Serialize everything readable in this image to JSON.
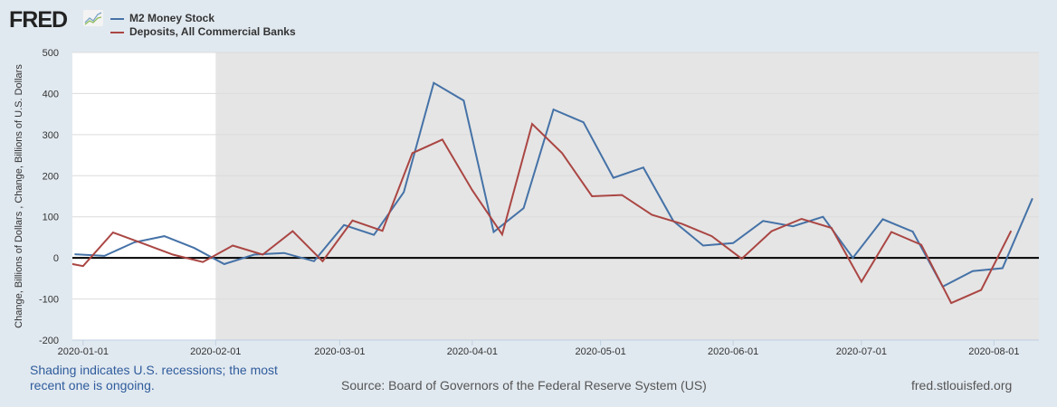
{
  "header": {
    "logo": "FRED",
    "logo_icon": "fred-chart-icon"
  },
  "chart_data": {
    "type": "line",
    "title": "",
    "xlabel": "",
    "ylabel": "Change, Billions of Dollars , Change, Billions of U.S. Dollars",
    "ylim": [
      -200,
      500
    ],
    "xlim": [
      "2019-12-29",
      "2020-08-11"
    ],
    "yticks": [
      500,
      400,
      300,
      200,
      100,
      0,
      -100,
      -200
    ],
    "xticks": [
      "2020-01-01",
      "2020-02-01",
      "2020-03-01",
      "2020-04-01",
      "2020-05-01",
      "2020-06-01",
      "2020-07-01",
      "2020-08-01"
    ],
    "grid": true,
    "legend_position": "top-left",
    "recession_shading": {
      "start": "2020-02-01",
      "end": "ongoing",
      "color": "#e5e5e5"
    },
    "series": [
      {
        "name": "M2 Money Stock",
        "color": "#4572a7",
        "x": [
          "2019-12-30",
          "2020-01-06",
          "2020-01-13",
          "2020-01-20",
          "2020-01-27",
          "2020-02-03",
          "2020-02-10",
          "2020-02-17",
          "2020-02-24",
          "2020-03-02",
          "2020-03-09",
          "2020-03-16",
          "2020-03-23",
          "2020-03-30",
          "2020-04-06",
          "2020-04-13",
          "2020-04-20",
          "2020-04-27",
          "2020-05-04",
          "2020-05-11",
          "2020-05-18",
          "2020-05-25",
          "2020-06-01",
          "2020-06-08",
          "2020-06-15",
          "2020-06-22",
          "2020-06-29",
          "2020-07-06",
          "2020-07-13",
          "2020-07-20",
          "2020-07-27",
          "2020-08-03",
          "2020-08-10"
        ],
        "values": [
          9,
          5,
          38,
          53,
          24,
          -15,
          8,
          12,
          -8,
          80,
          56,
          160,
          426,
          383,
          63,
          121,
          361,
          330,
          195,
          220,
          90,
          30,
          36,
          90,
          77,
          100,
          0,
          94,
          64,
          -70,
          -32,
          -25,
          145
        ]
      },
      {
        "name": "Deposits, All Commercial Banks",
        "color": "#aa4643",
        "x": [
          "2019-12-25",
          "2020-01-01",
          "2020-01-08",
          "2020-01-15",
          "2020-01-22",
          "2020-01-29",
          "2020-02-05",
          "2020-02-12",
          "2020-02-19",
          "2020-02-26",
          "2020-03-04",
          "2020-03-11",
          "2020-03-18",
          "2020-03-25",
          "2020-04-01",
          "2020-04-08",
          "2020-04-15",
          "2020-04-22",
          "2020-04-29",
          "2020-05-06",
          "2020-05-13",
          "2020-05-20",
          "2020-05-27",
          "2020-06-03",
          "2020-06-10",
          "2020-06-17",
          "2020-06-24",
          "2020-07-01",
          "2020-07-08",
          "2020-07-15",
          "2020-07-22",
          "2020-07-29",
          "2020-08-05"
        ],
        "values": [
          -6,
          -20,
          62,
          35,
          8,
          -10,
          30,
          8,
          65,
          -8,
          91,
          66,
          255,
          288,
          165,
          57,
          326,
          255,
          150,
          153,
          105,
          83,
          53,
          -2,
          65,
          95,
          73,
          -58,
          63,
          32,
          -110,
          -78,
          66
        ]
      }
    ]
  },
  "footer": {
    "note": "Shading indicates U.S. recessions; the most recent one is ongoing.",
    "source": "Source: Board of Governors of the Federal Reserve System (US)",
    "site": "fred.stlouisfed.org"
  }
}
